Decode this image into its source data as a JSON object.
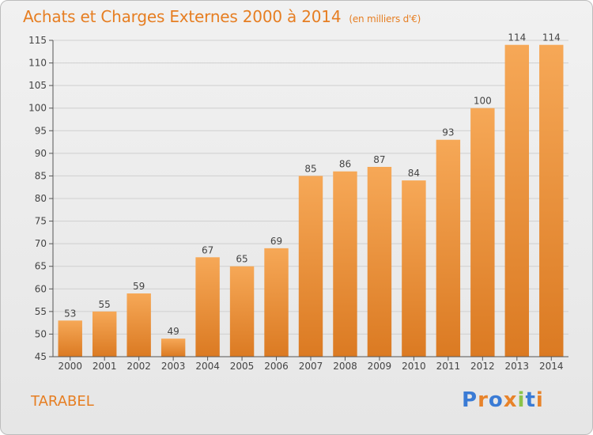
{
  "title": "Achats et Charges Externes 2000 à 2014",
  "subtitle": "(en milliers d'€)",
  "place": "TARABEL",
  "logo": {
    "text": "Proxiti",
    "letter_colors": [
      "#3a7bd5",
      "#e8832a",
      "#3a7bd5",
      "#e8832a",
      "#8bc34a",
      "#3a7bd5",
      "#e8832a"
    ]
  },
  "colors": {
    "bar_light": "#f6a857",
    "bar_dark": "#db7a22",
    "accent": "#e67e22",
    "axis": "#555555",
    "grid": "#cfcfcf"
  },
  "chart_data": {
    "type": "bar",
    "categories": [
      "2000",
      "2001",
      "2002",
      "2003",
      "2004",
      "2005",
      "2006",
      "2007",
      "2008",
      "2009",
      "2010",
      "2011",
      "2012",
      "2013",
      "2014"
    ],
    "values": [
      53,
      55,
      59,
      49,
      67,
      65,
      69,
      85,
      86,
      87,
      84,
      93,
      100,
      114,
      114
    ],
    "ylim": [
      45,
      115
    ],
    "yticks": [
      45,
      50,
      55,
      60,
      65,
      70,
      75,
      80,
      85,
      90,
      95,
      100,
      105,
      110,
      115
    ],
    "grid": true,
    "data_labels": true
  }
}
